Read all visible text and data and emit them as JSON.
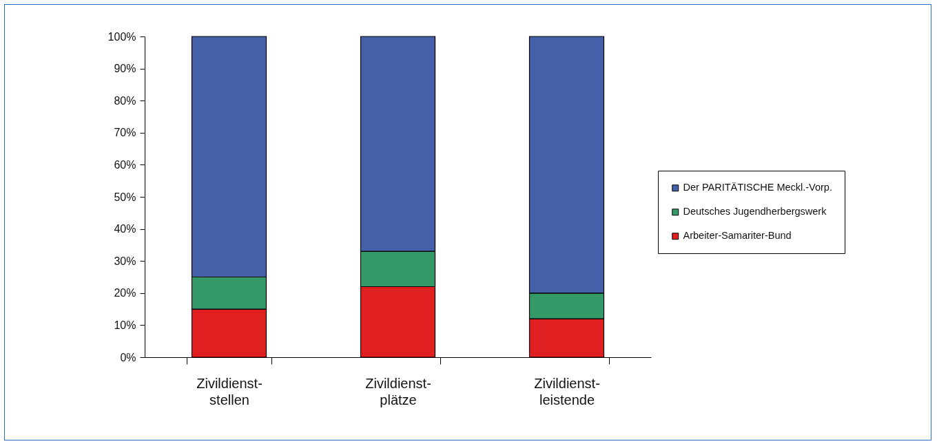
{
  "chart_data": {
    "type": "bar",
    "stacked": true,
    "categories": [
      "Zivildienst-\nstellen",
      "Zivildienst-\nplätze",
      "Zivildienst-\nleistende"
    ],
    "series": [
      {
        "name": "Arbeiter-Samariter-Bund",
        "color": "#e02020",
        "values": [
          15,
          22,
          12
        ]
      },
      {
        "name": "Deutsches Jugendherbergswerk",
        "color": "#339966",
        "values": [
          10,
          11,
          8
        ]
      },
      {
        "name": "Der PARITÄTISCHE Meckl.-Vorp.",
        "color": "#4560a8",
        "values": [
          75,
          67,
          80
        ]
      }
    ],
    "ylim": [
      0,
      100
    ],
    "yticks": [
      {
        "value": 0,
        "label": "0%"
      },
      {
        "value": 10,
        "label": "10%"
      },
      {
        "value": 20,
        "label": "20%"
      },
      {
        "value": 30,
        "label": "30%"
      },
      {
        "value": 40,
        "label": "40%"
      },
      {
        "value": 50,
        "label": "50%"
      },
      {
        "value": 60,
        "label": "60%"
      },
      {
        "value": 70,
        "label": "70%"
      },
      {
        "value": 80,
        "label": "80%"
      },
      {
        "value": 90,
        "label": "90%"
      },
      {
        "value": 100,
        "label": "100%"
      }
    ],
    "grid": false,
    "legend": "right"
  }
}
